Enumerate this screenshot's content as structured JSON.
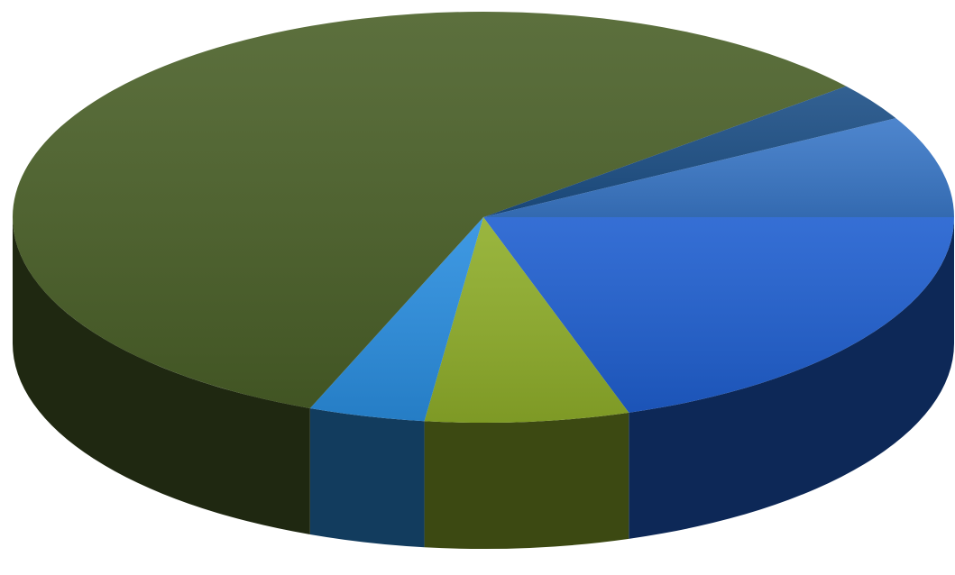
{
  "chart_data": {
    "type": "pie",
    "style": "3d",
    "title": "",
    "legend": "none",
    "start_angle_deg": 0,
    "direction": "clockwise",
    "slices": [
      {
        "value": 20,
        "color": "#1f5fd0"
      },
      {
        "value": 7,
        "color": "#8fae2a"
      },
      {
        "value": 4,
        "color": "#2a8ee0"
      },
      {
        "value": 58,
        "color": "#4a6028"
      },
      {
        "value": 3,
        "color": "#1c4f86"
      },
      {
        "value": 8,
        "color": "#3a78c8"
      }
    ]
  }
}
